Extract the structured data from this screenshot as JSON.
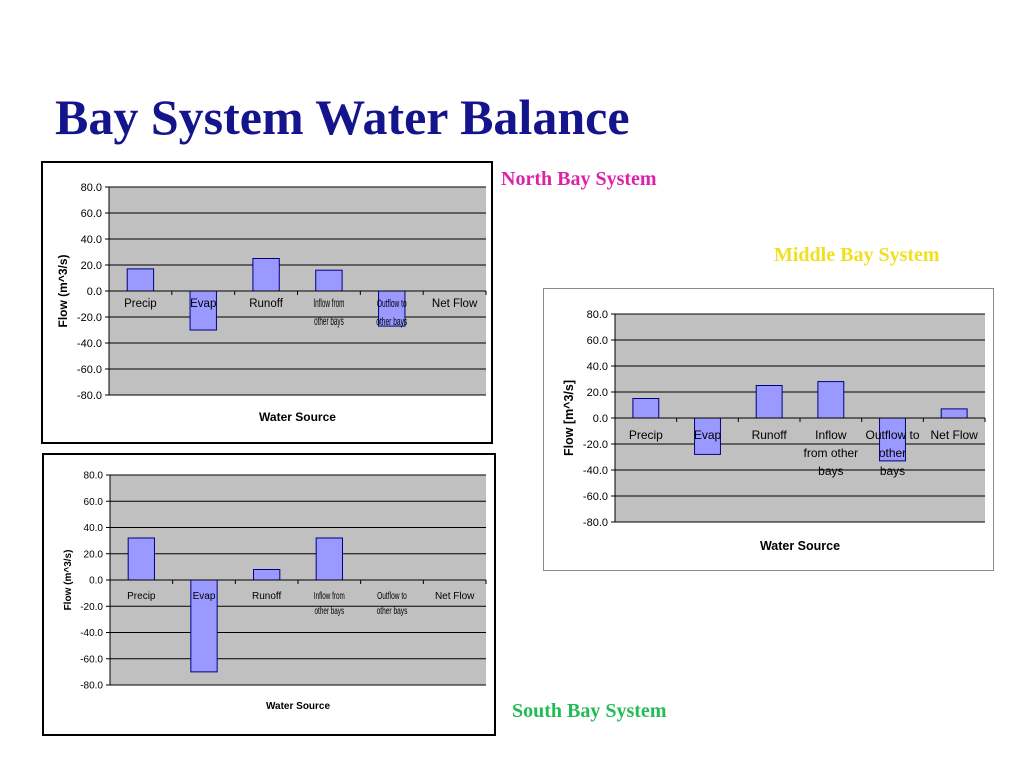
{
  "slide": {
    "title": "Bay System Water Balance",
    "title_color": "#14148c"
  },
  "labels": {
    "north": {
      "text": "North Bay System",
      "color": "#dd22aa"
    },
    "middle": {
      "text": "Middle Bay System",
      "color": "#f0e020"
    },
    "south": {
      "text": "South Bay System",
      "color": "#22bb55"
    }
  },
  "colors": {
    "plot_background": "#c0c0c0",
    "bar_fill": "#9999ff",
    "bar_stroke": "#000080",
    "gridline": "#000000"
  },
  "chart_data": [
    {
      "id": "north",
      "type": "bar",
      "title": "",
      "categories": [
        "Precip",
        "Evap",
        "Runoff",
        "Inflow from other bays",
        "Outflow to other bays",
        "Net Flow"
      ],
      "values": [
        17,
        -30,
        25,
        16,
        -27,
        0
      ],
      "xlabel": "Water Source",
      "ylabel": "Flow (m^3/s)",
      "ylim": [
        -80,
        80
      ],
      "yticks": [
        "80.0",
        "60.0",
        "40.0",
        "20.0",
        "0.0",
        "-20.0",
        "-40.0",
        "-60.0",
        "-80.0"
      ],
      "grid": true,
      "legend": "none"
    },
    {
      "id": "middle",
      "type": "bar",
      "title": "",
      "categories": [
        "Precip",
        "Evap",
        "Runoff",
        "Inflow from other bays",
        "Outflow to other bays",
        "Net Flow"
      ],
      "values": [
        15,
        -28,
        25,
        28,
        -33,
        7
      ],
      "xlabel": "Water Source",
      "ylabel": "Flow [m^3/s]",
      "ylim": [
        -80,
        80
      ],
      "yticks": [
        "80.0",
        "60.0",
        "40.0",
        "20.0",
        "0.0",
        "-20.0",
        "-40.0",
        "-60.0",
        "-80.0"
      ],
      "grid": true,
      "legend": "none"
    },
    {
      "id": "south",
      "type": "bar",
      "title": "",
      "categories": [
        "Precip",
        "Evap",
        "Runoff",
        "Inflow from other bays",
        "Outflow to other bays",
        "Net Flow"
      ],
      "values": [
        32,
        -70,
        8,
        32,
        0,
        0
      ],
      "xlabel": "Water Source",
      "ylabel": "Flow (m^3/s)",
      "ylim": [
        -80,
        80
      ],
      "yticks": [
        "80.0",
        "60.0",
        "40.0",
        "20.0",
        "0.0",
        "-20.0",
        "-40.0",
        "-60.0",
        "-80.0"
      ],
      "grid": true,
      "legend": "none"
    }
  ]
}
